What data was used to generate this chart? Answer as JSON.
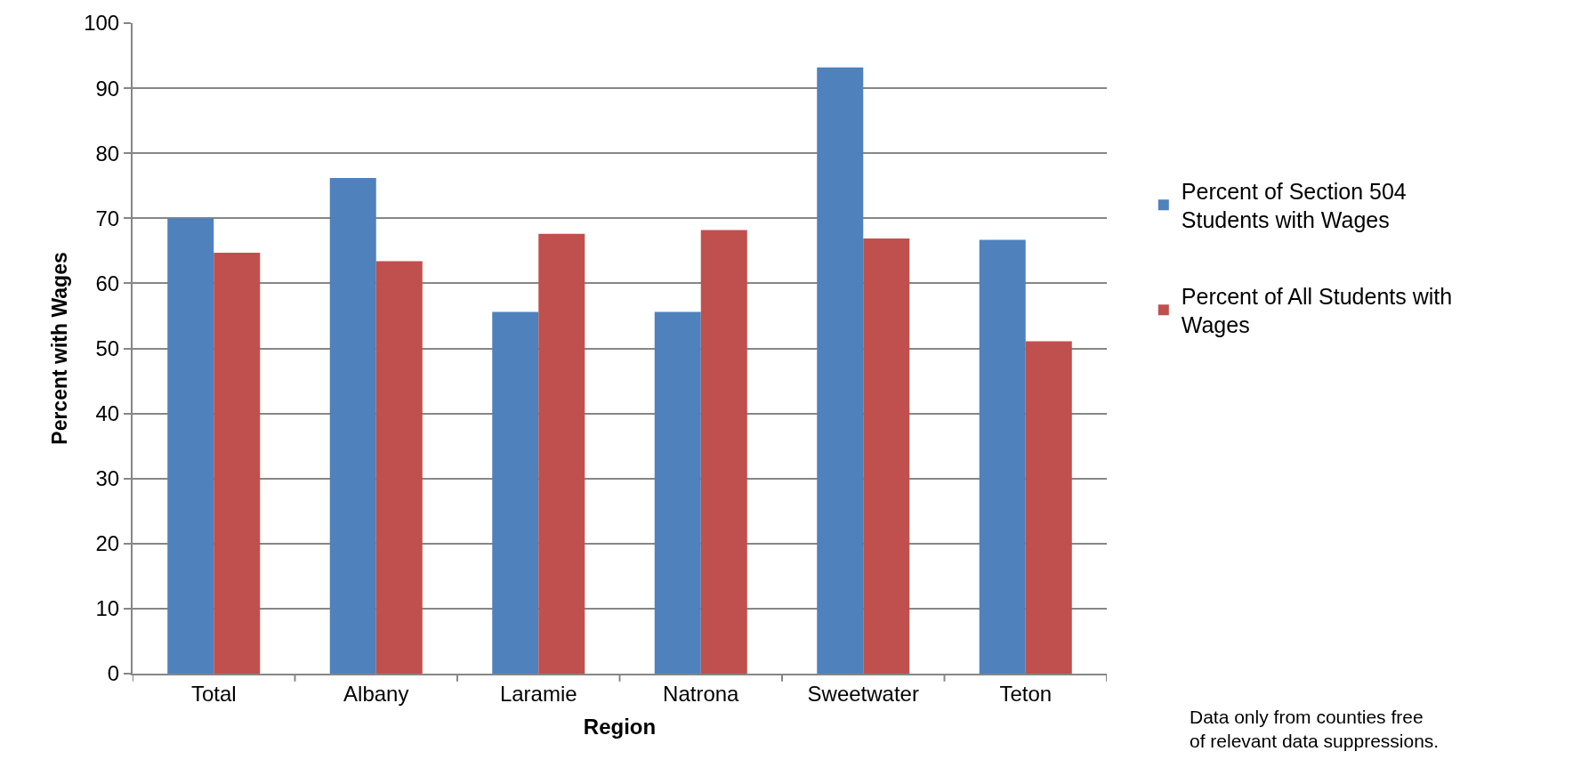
{
  "chart_data": {
    "type": "bar",
    "categories": [
      "Total",
      "Albany",
      "Laramie",
      "Natrona",
      "Sweetwater",
      "Teton"
    ],
    "series": [
      {
        "name": "Percent of Section 504 Students with Wages",
        "color": "#4f81bd",
        "values": [
          70.0,
          76.2,
          55.6,
          55.6,
          93.2,
          66.7
        ]
      },
      {
        "name": "Percent of All Students with Wages",
        "color": "#c0504d",
        "values": [
          64.7,
          63.4,
          67.6,
          68.2,
          66.9,
          51.1
        ]
      }
    ],
    "xlabel": "Region",
    "ylabel": "Percent with Wages",
    "ylim": [
      0,
      100
    ],
    "yticks": [
      0,
      10,
      20,
      30,
      40,
      50,
      60,
      70,
      80,
      90,
      100
    ],
    "grid": "y",
    "legend": "right",
    "annotations": [
      "Data only from counties free of relevant data suppressions."
    ]
  }
}
